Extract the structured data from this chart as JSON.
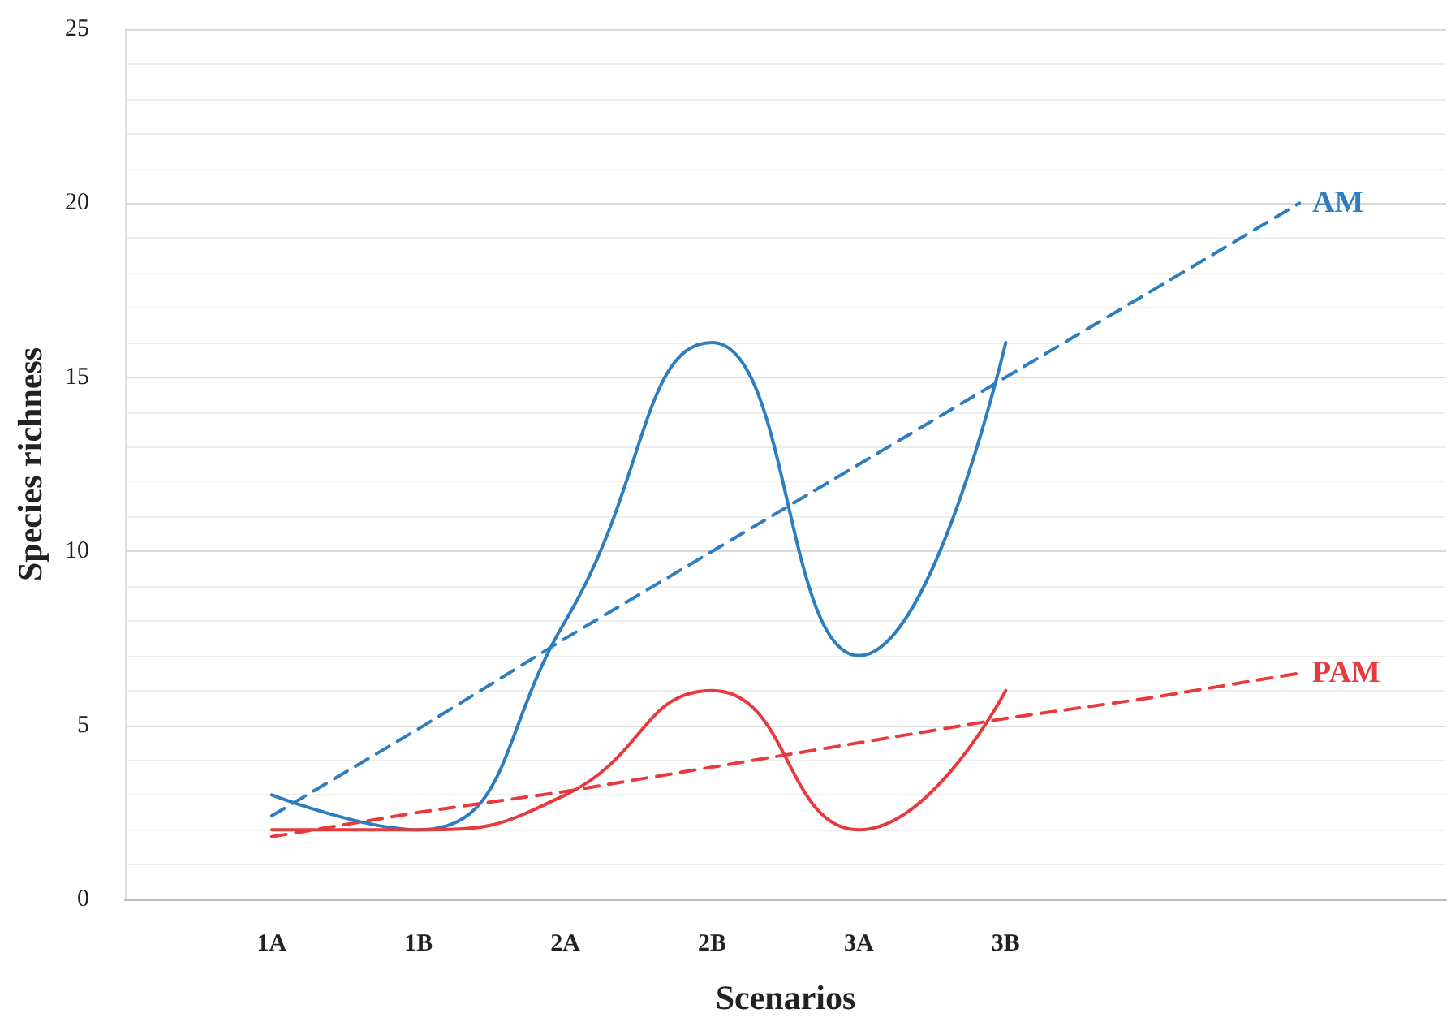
{
  "chart_data": {
    "type": "line",
    "xlabel": "Scenarios",
    "ylabel": "Species richness",
    "categories": [
      null,
      "1A",
      "1B",
      "2A",
      "2B",
      "3A",
      "3B",
      null,
      null,
      null
    ],
    "ylim": [
      0,
      25
    ],
    "yticks": [
      0,
      5,
      10,
      15,
      20,
      25
    ],
    "grid": "y",
    "legend": false,
    "marker": "none",
    "series": [
      {
        "color": "#2e7ebf",
        "values": [
          null,
          3,
          2,
          8,
          16,
          7,
          16,
          null,
          null,
          null
        ],
        "line_style": "solid"
      },
      {
        "color": "#e8393c",
        "values": [
          null,
          2,
          2,
          3,
          6,
          2,
          6,
          null,
          null,
          null
        ],
        "line_style": "solid"
      },
      {
        "name": "AM",
        "color": "#2e7ebf",
        "values": [
          null,
          2.4,
          4.9,
          7.5,
          10,
          12.5,
          15,
          17.5,
          20,
          null
        ],
        "line_style": "dashed"
      },
      {
        "name": "PAM",
        "color": "#e8393c",
        "values": [
          null,
          1.8,
          2.5,
          3.1,
          3.8,
          4.5,
          5.2,
          5.8,
          6.5,
          null
        ],
        "line_style": "dashed"
      }
    ]
  }
}
